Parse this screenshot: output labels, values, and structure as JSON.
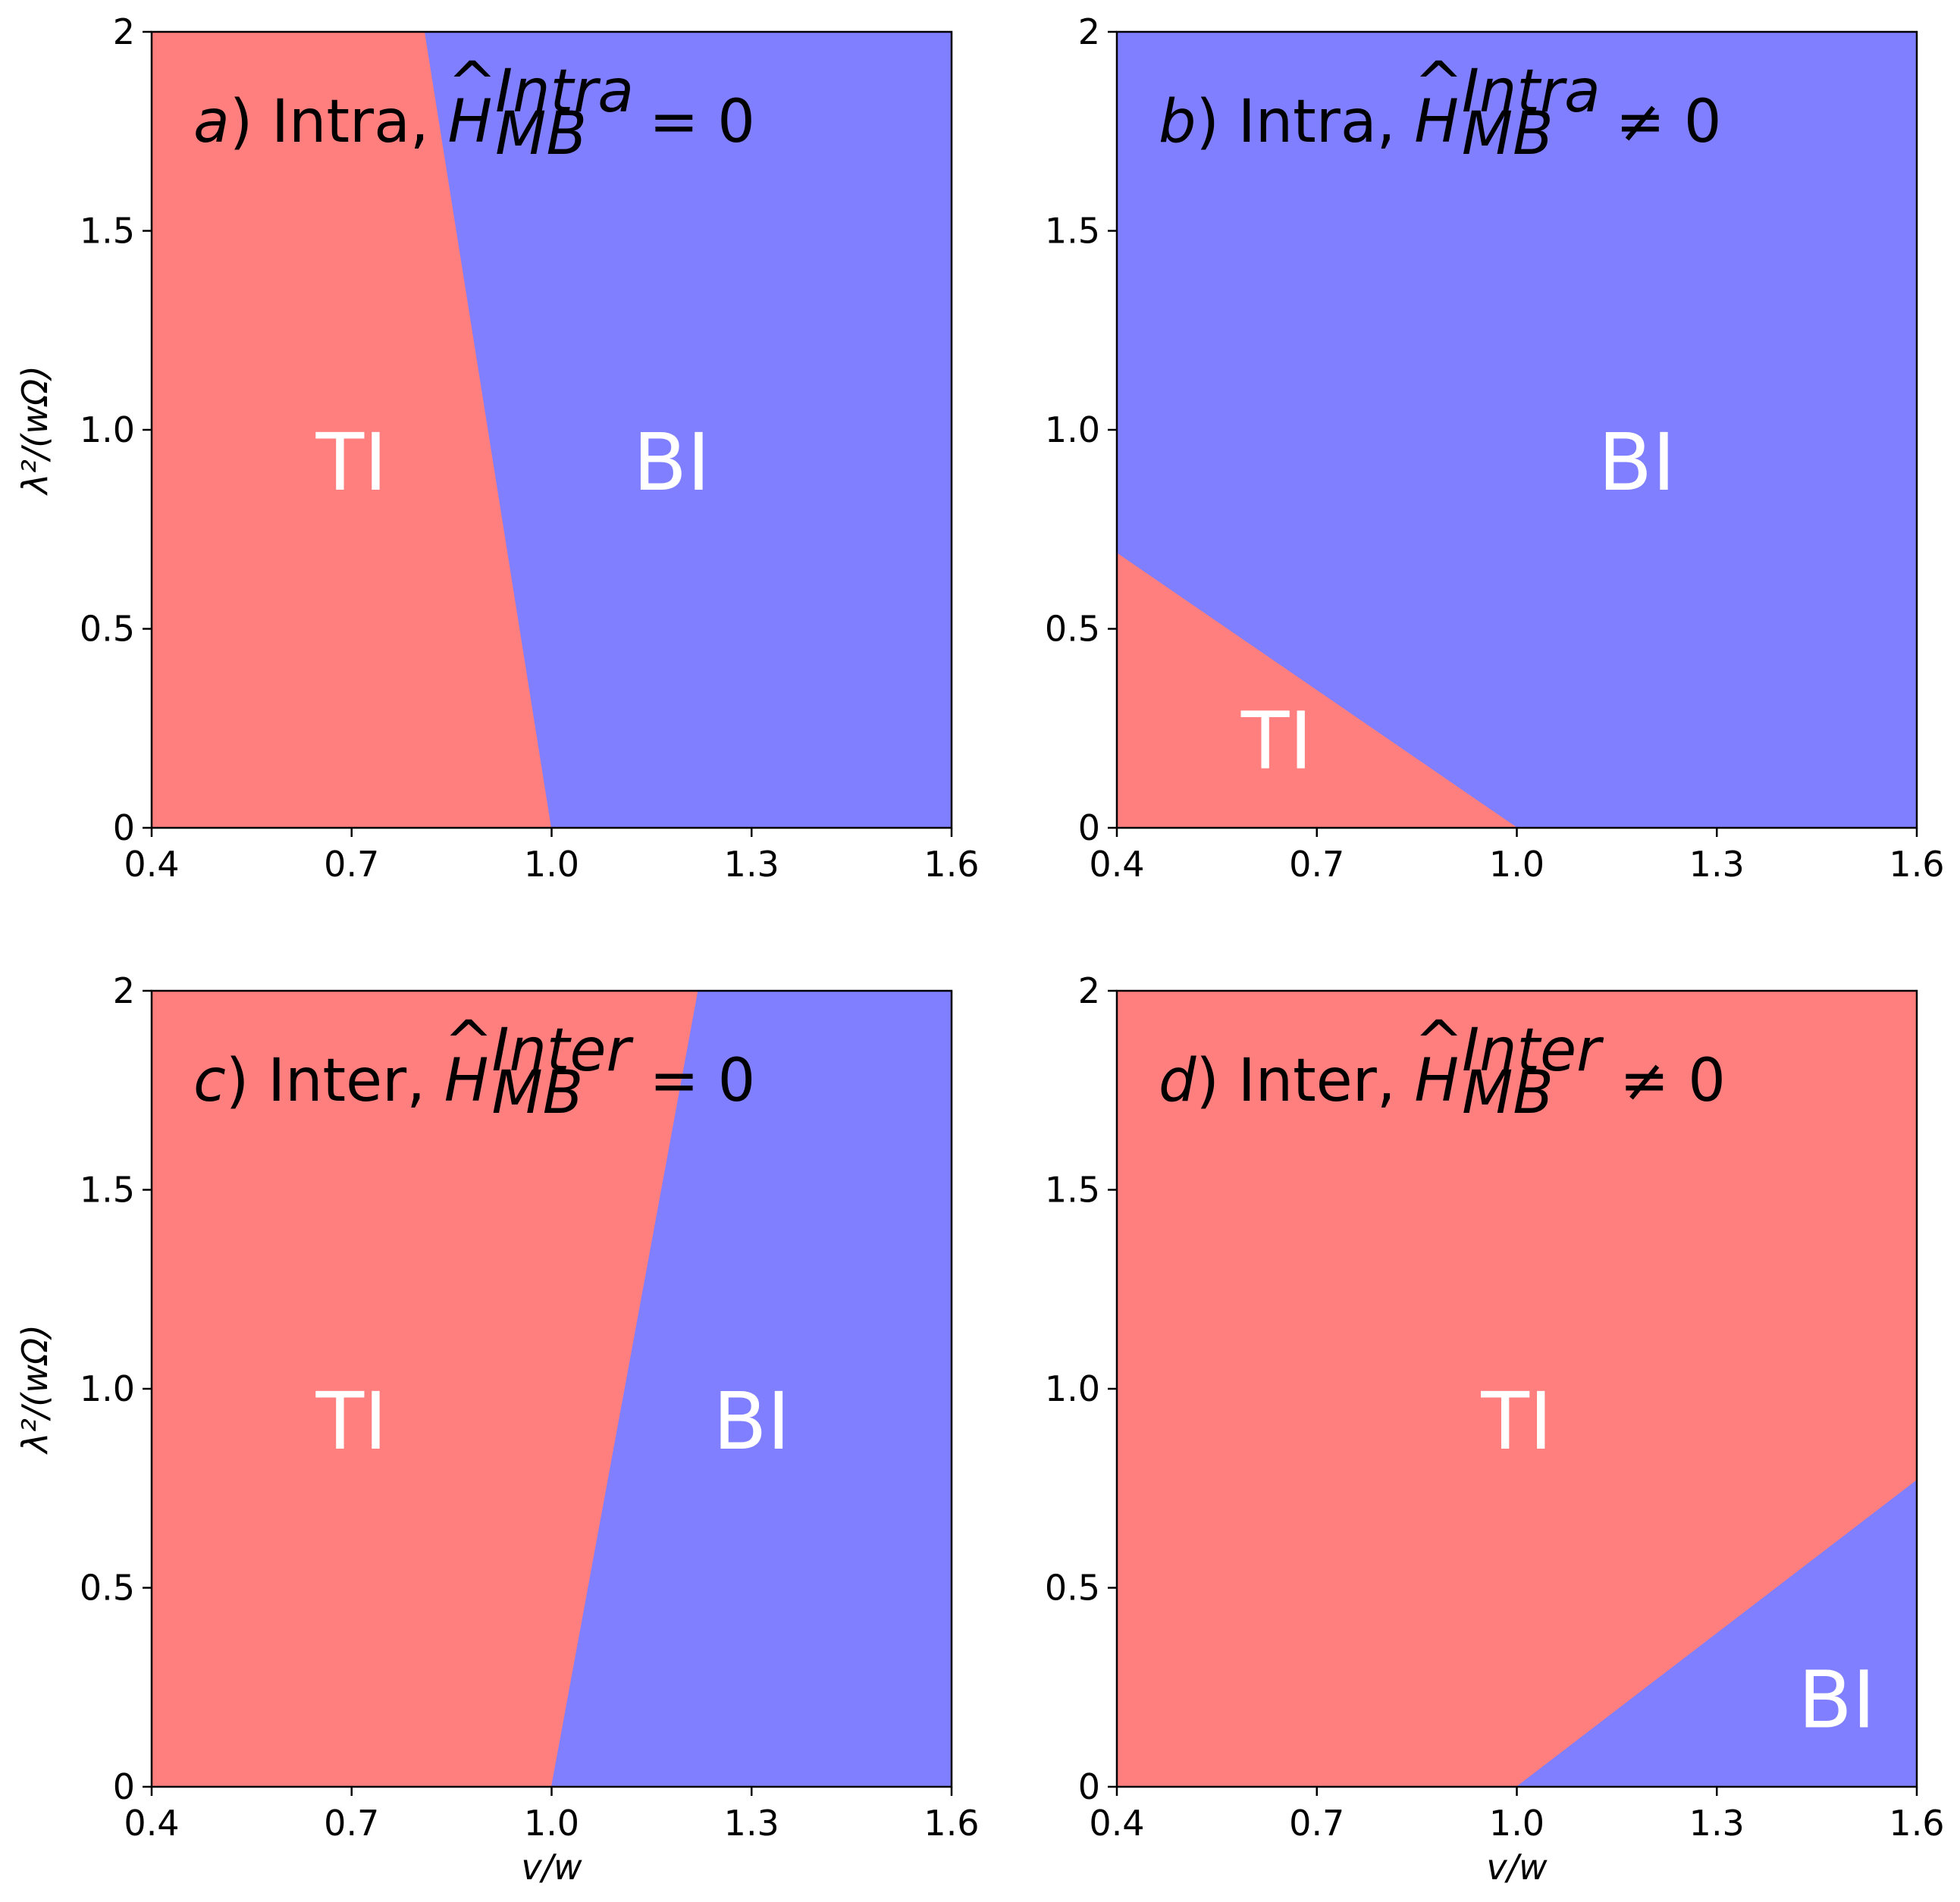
{
  "colors": {
    "TI": "#ff7f7f",
    "BI": "#7f7fff",
    "frame": "#000000"
  },
  "chart_data": [
    {
      "type": "heatmap",
      "id": "a",
      "title": {
        "letter": "a",
        "text": ") Intra, ",
        "op": "H",
        "sup": "Intra",
        "sub": "MB",
        "rel": "= 0"
      },
      "xlabel": "",
      "ylabel": "λ²/(wΩ)",
      "xlim": [
        0.4,
        1.6
      ],
      "ylim": [
        0,
        2
      ],
      "xticks": [
        "0.4",
        "0.7",
        "1.0",
        "1.3",
        "1.6"
      ],
      "yticks": [
        "0",
        "0.5",
        "1.0",
        "1.5",
        "2"
      ],
      "regions": [
        {
          "label": "TI",
          "color": "TI",
          "polygon": [
            [
              0.4,
              0
            ],
            [
              1.0,
              0
            ],
            [
              0.81,
              2
            ],
            [
              0.4,
              2
            ]
          ],
          "label_at": [
            0.7,
            0.85
          ]
        },
        {
          "label": "BI",
          "color": "BI",
          "polygon": [
            [
              1.0,
              0
            ],
            [
              1.6,
              0
            ],
            [
              1.6,
              2
            ],
            [
              0.81,
              2
            ]
          ],
          "label_at": [
            1.18,
            0.85
          ]
        }
      ]
    },
    {
      "type": "heatmap",
      "id": "b",
      "title": {
        "letter": "b",
        "text": ") Intra, ",
        "op": "H",
        "sup": "Intra",
        "sub": "MB",
        "rel": "≠ 0"
      },
      "xlabel": "",
      "ylabel": "",
      "xlim": [
        0.4,
        1.6
      ],
      "ylim": [
        0,
        2
      ],
      "xticks": [
        "0.4",
        "0.7",
        "1.0",
        "1.3",
        "1.6"
      ],
      "yticks": [
        "0",
        "0.5",
        "1.0",
        "1.5",
        "2"
      ],
      "regions": [
        {
          "label": "BI",
          "color": "BI",
          "polygon": [
            [
              0.4,
              0
            ],
            [
              1.6,
              0
            ],
            [
              1.6,
              2
            ],
            [
              0.4,
              2
            ]
          ],
          "label_at": [
            1.18,
            0.85
          ]
        },
        {
          "label": "TI",
          "color": "TI",
          "polygon": [
            [
              0.4,
              0
            ],
            [
              1.0,
              0
            ],
            [
              0.4,
              0.69
            ]
          ],
          "label_at": [
            0.64,
            0.15
          ]
        }
      ]
    },
    {
      "type": "heatmap",
      "id": "c",
      "title": {
        "letter": "c",
        "text": ") Inter, ",
        "op": "H",
        "sup": "Inter",
        "sub": "MB",
        "rel": "= 0"
      },
      "xlabel": "v/w",
      "ylabel": "λ²/(wΩ)",
      "xlim": [
        0.4,
        1.6
      ],
      "ylim": [
        0,
        2
      ],
      "xticks": [
        "0.4",
        "0.7",
        "1.0",
        "1.3",
        "1.6"
      ],
      "yticks": [
        "0",
        "0.5",
        "1.0",
        "1.5",
        "2"
      ],
      "regions": [
        {
          "label": "TI",
          "color": "TI",
          "polygon": [
            [
              0.4,
              0
            ],
            [
              1.0,
              0
            ],
            [
              1.22,
              2
            ],
            [
              0.4,
              2
            ]
          ],
          "label_at": [
            0.7,
            0.85
          ]
        },
        {
          "label": "BI",
          "color": "BI",
          "polygon": [
            [
              1.0,
              0
            ],
            [
              1.6,
              0
            ],
            [
              1.6,
              2
            ],
            [
              1.22,
              2
            ]
          ],
          "label_at": [
            1.3,
            0.85
          ]
        }
      ]
    },
    {
      "type": "heatmap",
      "id": "d",
      "title": {
        "letter": "d",
        "text": ") Inter, ",
        "op": "H",
        "sup": "Inter",
        "sub": "MB",
        "rel": "≠ 0"
      },
      "xlabel": "v/w",
      "ylabel": "",
      "xlim": [
        0.4,
        1.6
      ],
      "ylim": [
        0,
        2
      ],
      "xticks": [
        "0.4",
        "0.7",
        "1.0",
        "1.3",
        "1.6"
      ],
      "yticks": [
        "0",
        "0.5",
        "1.0",
        "1.5",
        "2"
      ],
      "regions": [
        {
          "label": "TI",
          "color": "TI",
          "polygon": [
            [
              0.4,
              0
            ],
            [
              1.6,
              0
            ],
            [
              1.6,
              2
            ],
            [
              0.4,
              2
            ]
          ],
          "label_at": [
            1.0,
            0.85
          ]
        },
        {
          "label": "BI",
          "color": "BI",
          "polygon": [
            [
              1.0,
              0
            ],
            [
              1.6,
              0
            ],
            [
              1.6,
              0.77
            ]
          ],
          "label_at": [
            1.48,
            0.15
          ]
        }
      ]
    }
  ]
}
